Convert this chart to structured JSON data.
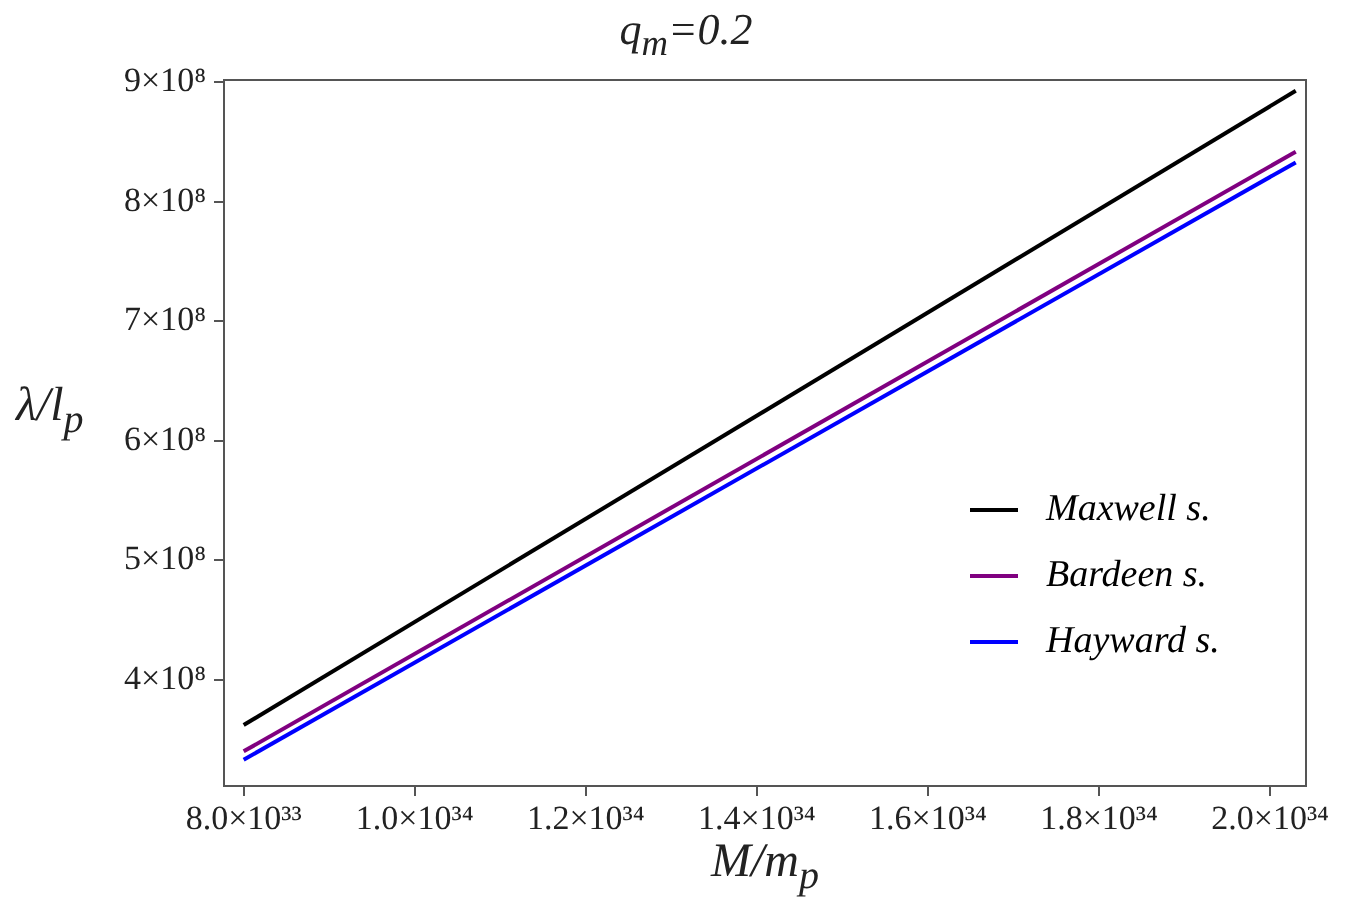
{
  "chart_data": {
    "type": "line",
    "title": "q$_{m}$=0.2",
    "xlabel": "M/m$_{p}$",
    "ylabel": "λ/l$_{p}$",
    "xlim": [
      7.77e+33,
      2.042e+34
    ],
    "ylim": [
      311000000.0,
      902000000.0
    ],
    "xticks": [
      {
        "value": 8e+33,
        "label": "8.0×10³³"
      },
      {
        "value": 1e+34,
        "label": "1.0×10³⁴"
      },
      {
        "value": 1.2e+34,
        "label": "1.2×10³⁴"
      },
      {
        "value": 1.4e+34,
        "label": "1.4×10³⁴"
      },
      {
        "value": 1.6e+34,
        "label": "1.6×10³⁴"
      },
      {
        "value": 1.8e+34,
        "label": "1.8×10³⁴"
      },
      {
        "value": 2e+34,
        "label": "2.0×10³⁴"
      }
    ],
    "yticks": [
      {
        "value": 400000000.0,
        "label": "4×10⁸"
      },
      {
        "value": 500000000.0,
        "label": "5×10⁸"
      },
      {
        "value": 600000000.0,
        "label": "6×10⁸"
      },
      {
        "value": 700000000.0,
        "label": "7×10⁸"
      },
      {
        "value": 800000000.0,
        "label": "8×10⁸"
      },
      {
        "value": 900000000.0,
        "label": "9×10⁸"
      }
    ],
    "x": [
      8e+33,
      2.03e+34
    ],
    "series": [
      {
        "name": "Maxwell s.",
        "color": "#000000",
        "values": [
          362000000.0,
          893000000.0
        ]
      },
      {
        "name": "Bardeen s.",
        "color": "#800080",
        "values": [
          340000000.0,
          842000000.0
        ]
      },
      {
        "name": "Hayward s.",
        "color": "#0000ff",
        "values": [
          333000000.0,
          833000000.0
        ]
      }
    ],
    "legend": "right",
    "marker": "none",
    "line_style": "solid"
  }
}
